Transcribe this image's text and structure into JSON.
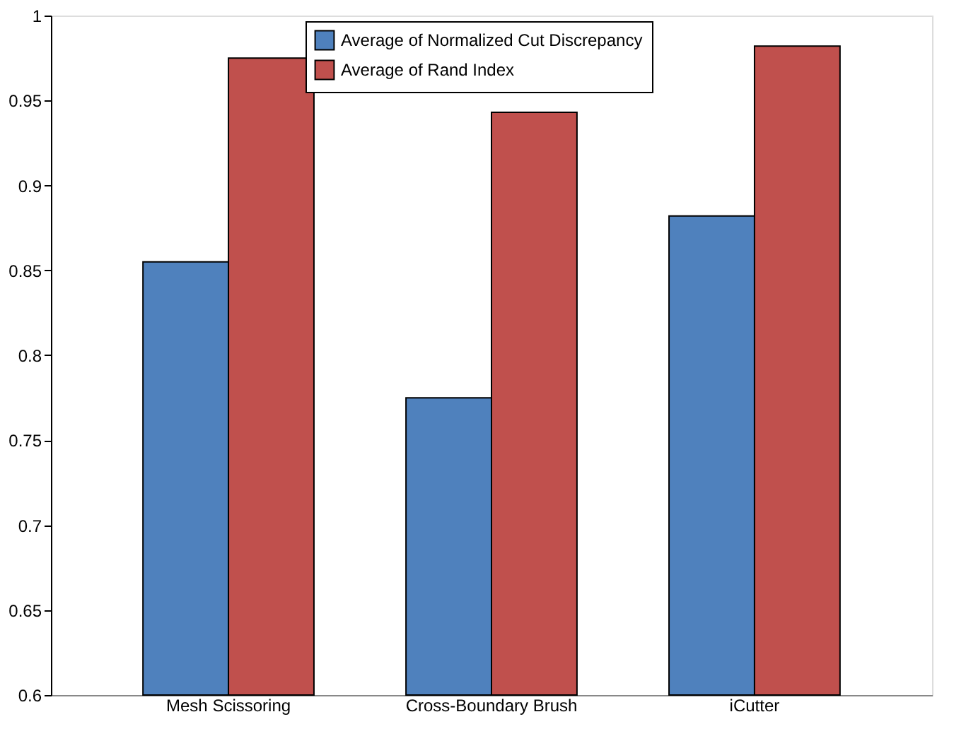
{
  "chart_data": {
    "type": "bar",
    "categories": [
      "Mesh Scissoring",
      "Cross-Boundary Brush",
      "iCutter"
    ],
    "series": [
      {
        "name": "Average of Normalized Cut Discrepancy",
        "color": "#4f81bd",
        "values": [
          0.855,
          0.775,
          0.882
        ]
      },
      {
        "name": "Average of Rand Index",
        "color": "#c0504d",
        "values": [
          0.975,
          0.943,
          0.982
        ]
      }
    ],
    "ylim": [
      0.6,
      1
    ],
    "yticks": [
      0.6,
      0.65,
      0.7,
      0.75,
      0.8,
      0.85,
      0.9,
      0.95,
      1
    ],
    "grid": false,
    "legend": "top"
  }
}
